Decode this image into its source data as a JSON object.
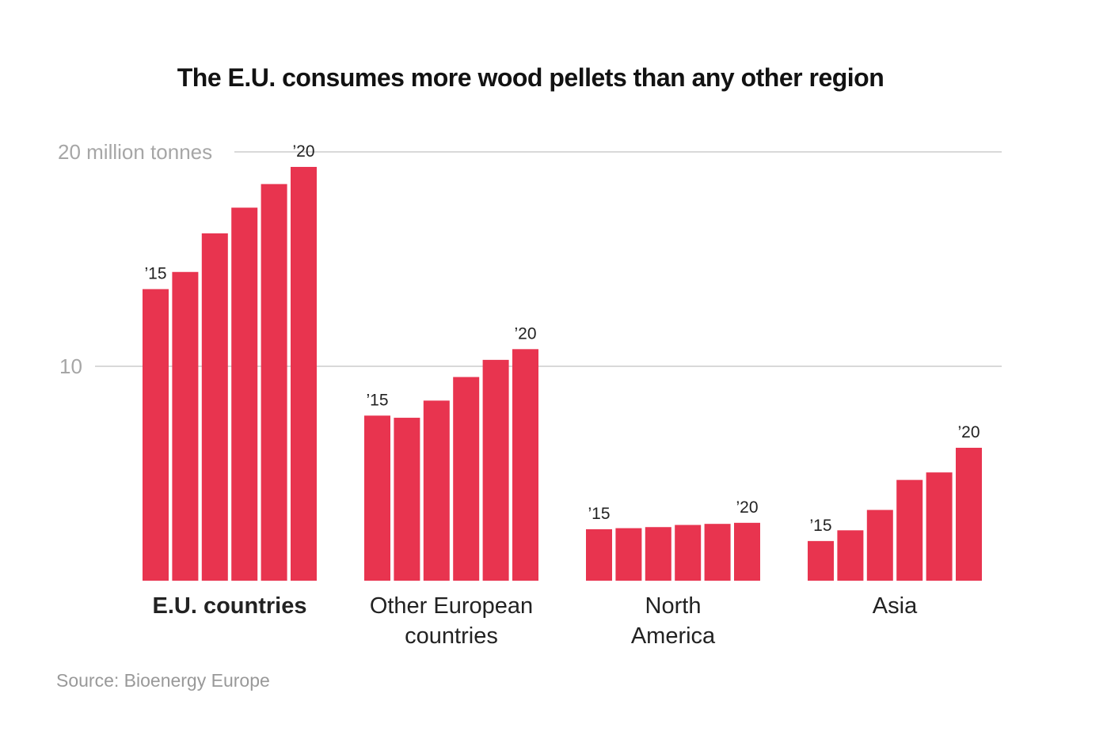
{
  "title": "The E.U. consumes more wood pellets than any other region",
  "source": "Source: Bioenergy Europe",
  "chart_data": {
    "type": "bar",
    "title": "The E.U. consumes more wood pellets than any other region",
    "ylabel": "million tonnes",
    "ylim": [
      0,
      20
    ],
    "yticks": [
      {
        "value": 20,
        "label": "20 million tonnes"
      },
      {
        "value": 10,
        "label": "10"
      }
    ],
    "grid": true,
    "years": [
      "2015",
      "2016",
      "2017",
      "2018",
      "2019",
      "2020"
    ],
    "first_year_label": "’15",
    "last_year_label": "’20",
    "groups": [
      {
        "name": "E.U. countries",
        "label_lines": [
          "E.U. countries"
        ],
        "highlight": true,
        "values": [
          13.6,
          14.4,
          16.2,
          17.4,
          18.5,
          19.3
        ]
      },
      {
        "name": "Other European countries",
        "label_lines": [
          "Other European",
          "countries"
        ],
        "highlight": false,
        "values": [
          7.7,
          7.6,
          8.4,
          9.5,
          10.3,
          10.8
        ]
      },
      {
        "name": "North America",
        "label_lines": [
          "North",
          "America"
        ],
        "highlight": false,
        "values": [
          2.4,
          2.45,
          2.5,
          2.6,
          2.65,
          2.7
        ]
      },
      {
        "name": "Asia",
        "label_lines": [
          "Asia"
        ],
        "highlight": false,
        "values": [
          1.85,
          2.35,
          3.3,
          4.7,
          5.05,
          6.2
        ]
      }
    ],
    "colors": {
      "bar": "#e8344f",
      "grid": "#b3b3b3",
      "tick_text": "#a6a6a6",
      "text": "#222222"
    }
  }
}
